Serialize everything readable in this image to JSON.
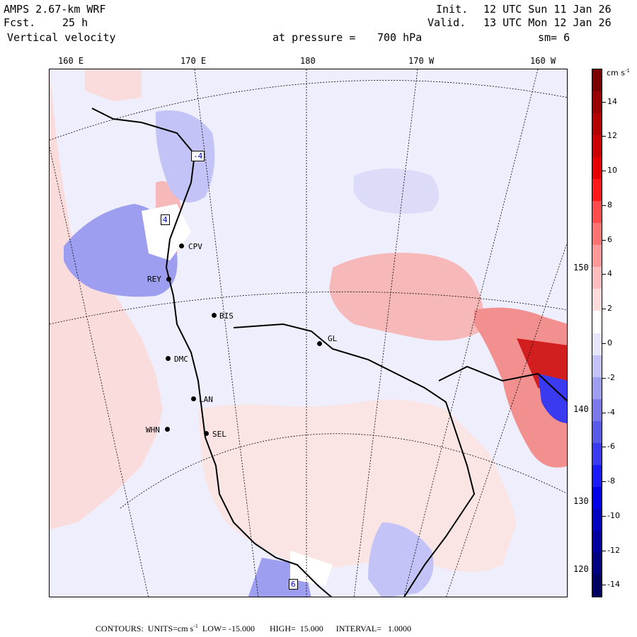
{
  "header": {
    "model": "AMPS 2.67-km WRF",
    "fcst_label": "Fcst.",
    "fcst_value": "25 h",
    "field": "Vertical velocity",
    "init_label": "Init.",
    "init_value": "12 UTC Sun 11 Jan 26",
    "valid_label": "Valid.",
    "valid_value": "13 UTC Mon 12 Jan 26",
    "level_label": "at pressure =",
    "level_value": "700 hPa",
    "smoothing": "sm= 6"
  },
  "longitude_labels": [
    "160 E",
    "170 E",
    "180",
    "170 W",
    "160 W"
  ],
  "right_labels": [
    "150 W",
    "140 W",
    "130 W",
    "120 W"
  ],
  "stations": [
    {
      "name": "CPV"
    },
    {
      "name": "REY"
    },
    {
      "name": "BIS"
    },
    {
      "name": "GL"
    },
    {
      "name": "LAN"
    },
    {
      "name": "WHN"
    },
    {
      "name": "SEL"
    },
    {
      "name": "DMC"
    }
  ],
  "contour_badges": [
    "-4",
    "4",
    "6"
  ],
  "colorbar": {
    "unit": "cm s",
    "unit_exp": "-1",
    "tick_labels": [
      "14",
      "12",
      "10",
      "8",
      "6",
      "4",
      "2",
      "0",
      "-2",
      "-4",
      "-6",
      "-8",
      "-10",
      "-12",
      "-14"
    ],
    "colors": [
      "#7a0000",
      "#990000",
      "#b30000",
      "#cc0000",
      "#e60000",
      "#ff1a1a",
      "#ff4d4d",
      "#ff7373",
      "#ff9999",
      "#ffbdbd",
      "#ffdcdc",
      "#ffffff",
      "#e6e6fc",
      "#c3c3f7",
      "#9e9ef0",
      "#7a7aea",
      "#5a5aea",
      "#3a3af0",
      "#1a1af5",
      "#0000e6",
      "#0000c0",
      "#0000a0",
      "#000080",
      "#000060"
    ]
  },
  "footer": {
    "contours_label": "CONTOURS:",
    "units_label": "UNITS=cm s",
    "units_exp": "-1",
    "low_label": "LOW=",
    "low_value": "-15.000",
    "high_label": "HIGH=",
    "high_value": "15.000",
    "interval_label": "INTERVAL=",
    "interval_value": "1.0000"
  },
  "colors": {
    "positive_light": "#fbdcdc",
    "negative_light": "#dcdcf8",
    "background": "#eeeefc"
  }
}
